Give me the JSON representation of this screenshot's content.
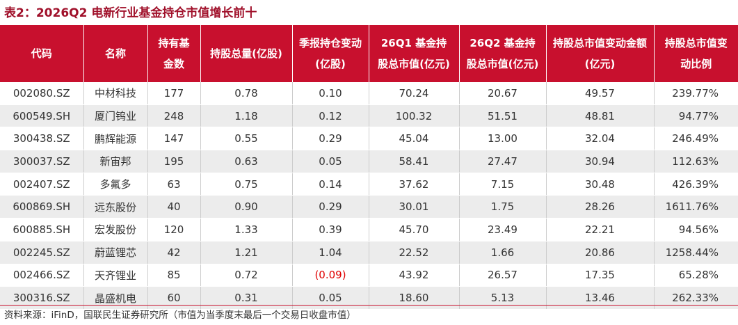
{
  "title": "表2：2026Q2 电新行业基金持仓市值增长前十",
  "table": {
    "header": [
      "代码",
      "名称",
      "持有基金数",
      "持股总量(亿股)",
      "季报持仓变动(亿股)",
      "26Q1 基金持股总市值(亿元)",
      "26Q2 基金持股总市值(亿元)",
      "持股总市值变动金额(亿元)",
      "持股总市值变动比例"
    ],
    "rows": [
      [
        "002080.SZ",
        "中材科技",
        "177",
        "0.78",
        "0.10",
        "70.24",
        "20.67",
        "49.57",
        "239.77%"
      ],
      [
        "600549.SH",
        "厦门钨业",
        "248",
        "1.18",
        "0.12",
        "100.32",
        "51.51",
        "48.81",
        "94.77%"
      ],
      [
        "300438.SZ",
        "鹏辉能源",
        "147",
        "0.55",
        "0.29",
        "45.04",
        "13.00",
        "32.04",
        "246.49%"
      ],
      [
        "300037.SZ",
        "新宙邦",
        "195",
        "0.63",
        "0.05",
        "58.41",
        "27.47",
        "30.94",
        "112.63%"
      ],
      [
        "002407.SZ",
        "多氟多",
        "63",
        "0.75",
        "0.14",
        "37.62",
        "7.15",
        "30.48",
        "426.39%"
      ],
      [
        "600869.SH",
        "远东股份",
        "40",
        "0.90",
        "0.29",
        "30.01",
        "1.75",
        "28.26",
        "1611.76%"
      ],
      [
        "600885.SH",
        "宏发股份",
        "120",
        "1.33",
        "0.39",
        "45.70",
        "23.49",
        "22.21",
        "94.56%"
      ],
      [
        "002245.SZ",
        "蔚蓝锂芯",
        "42",
        "1.21",
        "1.04",
        "22.52",
        "1.66",
        "20.86",
        "1258.44%"
      ],
      [
        "002466.SZ",
        "天齐锂业",
        "85",
        "0.72",
        "(0.09)",
        "43.92",
        "26.57",
        "17.35",
        "65.28%"
      ],
      [
        "300316.SZ",
        "晶盛机电",
        "60",
        "0.31",
        "0.05",
        "18.60",
        "5.13",
        "13.46",
        "262.33%"
      ]
    ]
  },
  "footnote": "资料来源：iFinD，国联民生证券研究所（市值为当季度末最后一个交易日收盘市值）"
}
